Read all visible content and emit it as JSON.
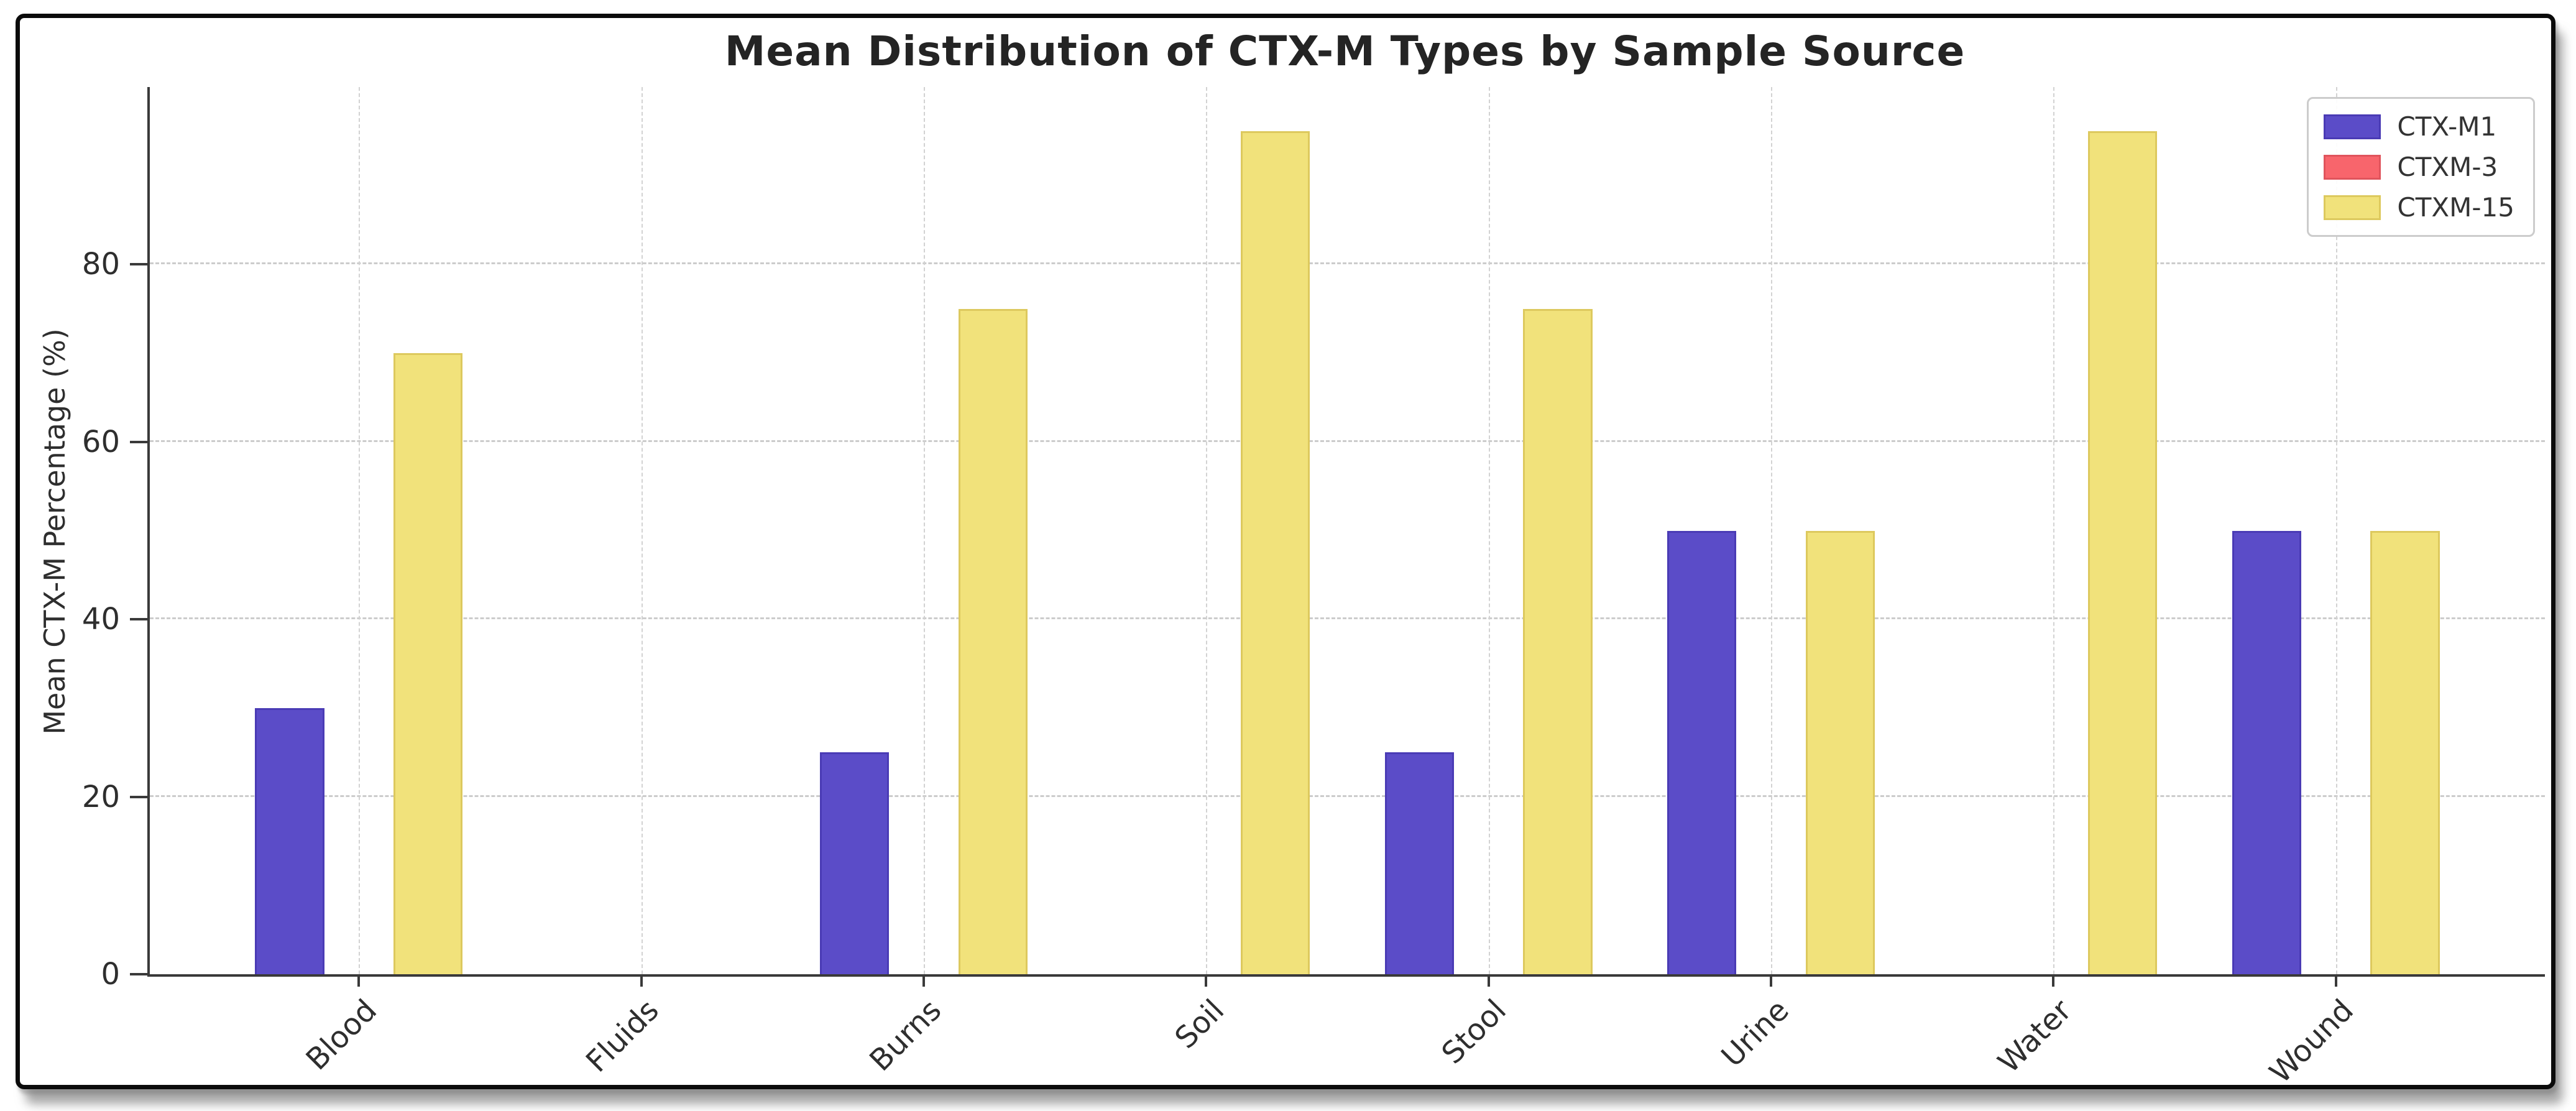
{
  "window": {
    "background_color": "#ffffff",
    "frame_border_color": "#0b0b0b",
    "shadow_color": "#6e6e6e"
  },
  "chart_data": {
    "type": "bar",
    "title": "Mean Distribution of CTX-M Types by Sample Source",
    "xlabel": "",
    "ylabel": "Mean CTX-M Percentage (%)",
    "categories": [
      "Blood",
      "Fluids",
      "Burns",
      "Soil",
      "Stool",
      "Urine",
      "Water",
      "Wound"
    ],
    "series": [
      {
        "name": "CTX-M1",
        "color": "#5b4cc8",
        "edge_color": "#4a3bb5",
        "values": [
          30,
          0,
          25,
          0,
          25,
          50,
          0,
          50
        ]
      },
      {
        "name": "CTXM-3",
        "color": "#f8656c",
        "edge_color": "#e0545c",
        "values": [
          0,
          0,
          0,
          0,
          0,
          0,
          0,
          0
        ]
      },
      {
        "name": "CTXM-15",
        "color": "#f1e27b",
        "edge_color": "#ddc95e",
        "values": [
          70,
          0,
          75,
          95,
          75,
          50,
          95,
          50
        ]
      }
    ],
    "yticks": [
      0,
      20,
      40,
      60,
      80
    ],
    "ytick_labels": [
      "0",
      "20",
      "40",
      "60",
      "80"
    ],
    "ylim": [
      0,
      100
    ],
    "grid": true,
    "grid_style": "dashed",
    "legend_position": "upper right"
  }
}
